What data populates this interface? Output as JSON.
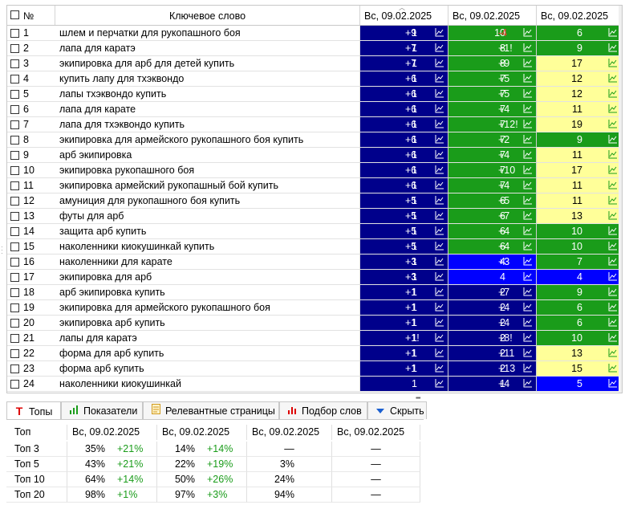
{
  "grid": {
    "headers": {
      "num": "№",
      "keyword": "Ключевое слово",
      "date1": "Вс, 09.02.2025",
      "date2": "Вс, 09.02.2025",
      "date3": "Вс, 09.02.2025"
    },
    "rows": [
      {
        "num": "1",
        "kw": "шлем и перчатки для рукопашного боя",
        "p1": "1",
        "d1": "+9",
        "c1": "navy",
        "p2": "10",
        "d2": "-4",
        "c2": "green",
        "p3": "6",
        "c3": "green"
      },
      {
        "num": "2",
        "kw": "лапа для каратэ",
        "p1": "1",
        "d1": "+7",
        "c1": "navy",
        "p2": "8",
        "d2": "+1!",
        "c2": "green",
        "p3": "9",
        "c3": "green"
      },
      {
        "num": "3",
        "kw": "экипировка для арб для детей купить",
        "p1": "1",
        "d1": "+7",
        "c1": "navy",
        "p2": "8",
        "d2": "+9",
        "c2": "green",
        "p3": "17",
        "c3": "yellow"
      },
      {
        "num": "4",
        "kw": "купить лапу для тхэквондо",
        "p1": "1",
        "d1": "+6",
        "c1": "navy",
        "p2": "7",
        "d2": "+5",
        "c2": "green",
        "p3": "12",
        "c3": "yellow"
      },
      {
        "num": "5",
        "kw": "лапы тхэквондо купить",
        "p1": "1",
        "d1": "+6",
        "c1": "navy",
        "p2": "7",
        "d2": "+5",
        "c2": "green",
        "p3": "12",
        "c3": "yellow"
      },
      {
        "num": "6",
        "kw": "лапа для карате",
        "p1": "1",
        "d1": "+6",
        "c1": "navy",
        "p2": "7",
        "d2": "+4",
        "c2": "green",
        "p3": "11",
        "c3": "yellow"
      },
      {
        "num": "7",
        "kw": "лапа для тхэквондо купить",
        "p1": "1",
        "d1": "+6",
        "c1": "navy",
        "p2": "7",
        "d2": "+12!",
        "c2": "green",
        "p3": "19",
        "c3": "yellow"
      },
      {
        "num": "8",
        "kw": "экипировка для армейского рукопашного боя купить",
        "p1": "1",
        "d1": "+6",
        "c1": "navy",
        "p2": "7",
        "d2": "+2",
        "c2": "green",
        "p3": "9",
        "c3": "green"
      },
      {
        "num": "9",
        "kw": "арб экипировка",
        "p1": "1",
        "d1": "+6",
        "c1": "navy",
        "p2": "7",
        "d2": "+4",
        "c2": "green",
        "p3": "11",
        "c3": "yellow"
      },
      {
        "num": "10",
        "kw": "экипировка рукопашного боя",
        "p1": "1",
        "d1": "+6",
        "c1": "navy",
        "p2": "7",
        "d2": "+10",
        "c2": "green",
        "p3": "17",
        "c3": "yellow"
      },
      {
        "num": "11",
        "kw": "экипировка армейский рукопашный бой купить",
        "p1": "1",
        "d1": "+6",
        "c1": "navy",
        "p2": "7",
        "d2": "+4",
        "c2": "green",
        "p3": "11",
        "c3": "yellow"
      },
      {
        "num": "12",
        "kw": "амуниция для рукопашного боя купить",
        "p1": "1",
        "d1": "+5",
        "c1": "navy",
        "p2": "6",
        "d2": "+5",
        "c2": "green",
        "p3": "11",
        "c3": "yellow"
      },
      {
        "num": "13",
        "kw": "футы для арб",
        "p1": "1",
        "d1": "+5",
        "c1": "navy",
        "p2": "6",
        "d2": "+7",
        "c2": "green",
        "p3": "13",
        "c3": "yellow"
      },
      {
        "num": "14",
        "kw": "защита арб купить",
        "p1": "1",
        "d1": "+5",
        "c1": "navy",
        "p2": "6",
        "d2": "+4",
        "c2": "green",
        "p3": "10",
        "c3": "green"
      },
      {
        "num": "15",
        "kw": "наколенники киокушинкай купить",
        "p1": "1",
        "d1": "+5",
        "c1": "navy",
        "p2": "6",
        "d2": "+4",
        "c2": "green",
        "p3": "10",
        "c3": "green"
      },
      {
        "num": "16",
        "kw": "наколенники для карате",
        "p1": "1",
        "d1": "+3",
        "c1": "navy",
        "p2": "4",
        "d2": "+3",
        "c2": "blue",
        "p3": "7",
        "c3": "green"
      },
      {
        "num": "17",
        "kw": "экипировка для арб",
        "p1": "1",
        "d1": "+3",
        "c1": "navy",
        "p2": "4",
        "d2": "",
        "c2": "blue",
        "p3": "4",
        "c3": "blue"
      },
      {
        "num": "18",
        "kw": "арб экипировка купить",
        "p1": "1",
        "d1": "+1",
        "c1": "navy",
        "p2": "2",
        "d2": "+7",
        "c2": "navy",
        "p3": "9",
        "c3": "green"
      },
      {
        "num": "19",
        "kw": "экипировка для армейского рукопашного боя",
        "p1": "1",
        "d1": "+1",
        "c1": "navy",
        "p2": "2",
        "d2": "+4",
        "c2": "navy",
        "p3": "6",
        "c3": "green"
      },
      {
        "num": "20",
        "kw": "экипировка арб купить",
        "p1": "1",
        "d1": "+1",
        "c1": "navy",
        "p2": "2",
        "d2": "+4",
        "c2": "navy",
        "p3": "6",
        "c3": "green"
      },
      {
        "num": "21",
        "kw": "лапы для каратэ",
        "p1": "1",
        "d1": "+1!",
        "c1": "navy",
        "p2": "2",
        "d2": "+8!",
        "c2": "navy",
        "p3": "10",
        "c3": "green"
      },
      {
        "num": "22",
        "kw": "форма для арб купить",
        "p1": "1",
        "d1": "+1",
        "c1": "navy",
        "p2": "2",
        "d2": "+11",
        "c2": "navy",
        "p3": "13",
        "c3": "yellow"
      },
      {
        "num": "23",
        "kw": "форма арб купить",
        "p1": "1",
        "d1": "+1",
        "c1": "navy",
        "p2": "2",
        "d2": "+13",
        "c2": "navy",
        "p3": "15",
        "c3": "yellow"
      },
      {
        "num": "24",
        "kw": "наколенники киокушинкай",
        "p1": "1",
        "d1": "",
        "c1": "navy",
        "p2": "1",
        "d2": "+4",
        "c2": "navy",
        "p3": "5",
        "c3": "blue"
      }
    ]
  },
  "tabs": [
    {
      "label": "Топы",
      "icon": "text-t-icon",
      "active": true
    },
    {
      "label": "Показатели",
      "icon": "bar-chart-green-icon",
      "active": false
    },
    {
      "label": "Релевантные страницы",
      "icon": "document-icon",
      "active": false
    },
    {
      "label": "Подбор слов",
      "icon": "bar-chart-red-icon",
      "active": false
    },
    {
      "label": "Скрыть",
      "icon": "triangle-down-icon",
      "active": false
    }
  ],
  "tops": {
    "headers": {
      "label": "Топ",
      "d1": "Вс, 09.02.2025",
      "d2": "Вс, 09.02.2025",
      "d3": "Вс, 09.02.2025",
      "d4": "Вс, 09.02.2025"
    },
    "rows": [
      {
        "label": "Топ 3",
        "v1": "35%",
        "dv1": "+21%",
        "v2": "14%",
        "dv2": "+14%",
        "v3": "—",
        "v4": "—"
      },
      {
        "label": "Топ 5",
        "v1": "43%",
        "dv1": "+21%",
        "v2": "22%",
        "dv2": "+19%",
        "v3": "3%",
        "v4": "—"
      },
      {
        "label": "Топ 10",
        "v1": "64%",
        "dv1": "+14%",
        "v2": "50%",
        "dv2": "+26%",
        "v3": "24%",
        "v4": "—"
      },
      {
        "label": "Топ 20",
        "v1": "98%",
        "dv1": "+1%",
        "v2": "97%",
        "dv2": "+3%",
        "v3": "94%",
        "v4": "—"
      }
    ]
  },
  "colors": {
    "navy": "#00008b",
    "green": "#1a9c1a",
    "yellow": "#ffff99",
    "blue": "#0000ff",
    "delta_red": "#ff3333"
  }
}
